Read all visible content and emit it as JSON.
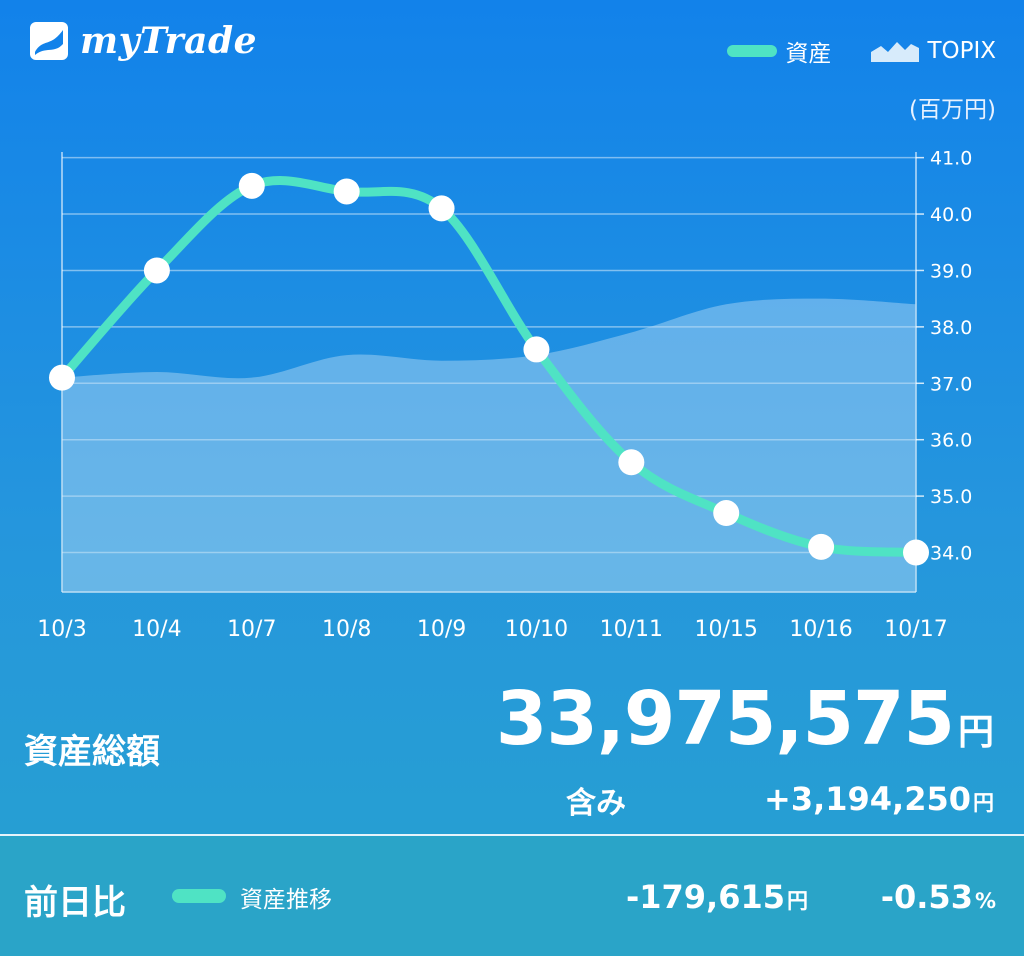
{
  "app": {
    "logo_text": "myTrade"
  },
  "legend": {
    "asset_label": "資産",
    "topix_label": "TOPIX"
  },
  "unit_label": "(百万円)",
  "colors": {
    "asset_line": "#4fe3c4",
    "topix_area": "#b9dcf7",
    "background_top": "#1282ea",
    "background_bottom": "#27a2cf",
    "footer": "#2aa4c8"
  },
  "chart_data": {
    "type": "line",
    "categories": [
      "10/3",
      "10/4",
      "10/7",
      "10/8",
      "10/9",
      "10/10",
      "10/11",
      "10/15",
      "10/16",
      "10/17"
    ],
    "series": [
      {
        "name": "資産",
        "style": "line-with-markers",
        "values": [
          37.1,
          39.0,
          40.5,
          40.4,
          40.1,
          37.6,
          35.6,
          34.7,
          34.1,
          34.0
        ]
      },
      {
        "name": "TOPIX",
        "style": "area",
        "values": [
          37.1,
          37.2,
          37.1,
          37.5,
          37.4,
          37.5,
          37.9,
          38.4,
          38.5,
          38.4
        ]
      }
    ],
    "y_ticks": [
      "41.0",
      "40.0",
      "39.0",
      "38.0",
      "37.0",
      "36.0",
      "35.0",
      "34.0"
    ],
    "ylim": [
      33.3,
      41.1
    ],
    "y_axis_position": "right",
    "grid": true,
    "legend_position": "top-right"
  },
  "summary": {
    "total_label": "資産総額",
    "total_value": "33,975,575",
    "yen": "円",
    "included_label": "含み",
    "included_value": "+3,194,250"
  },
  "footer": {
    "prev_day_label": "前日比",
    "trend_label": "資産推移",
    "diff_value": "-179,615",
    "yen": "円",
    "pct_value": "-0.53",
    "pct_unit": "%"
  }
}
